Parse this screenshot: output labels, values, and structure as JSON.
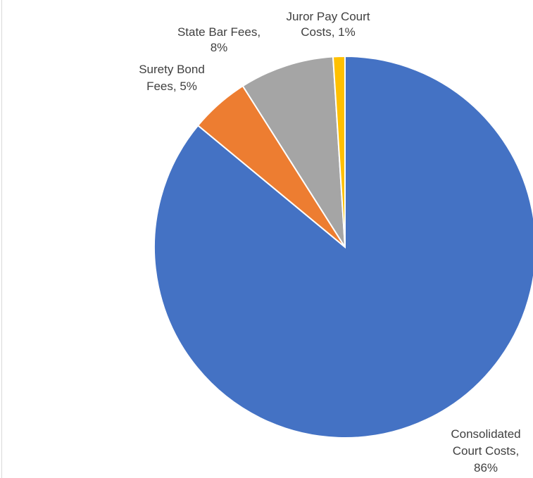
{
  "chart_data": {
    "type": "pie",
    "title": "",
    "slices": [
      {
        "label_lines": [
          "Consolidated",
          "Court Costs,",
          "86%"
        ],
        "category": "Consolidated Court Costs",
        "value": 86,
        "color": "#4472C4"
      },
      {
        "label_lines": [
          "Surety Bond",
          "Fees, 5%"
        ],
        "category": "Surety Bond Fees",
        "value": 5,
        "color": "#ED7D31"
      },
      {
        "label_lines": [
          "State Bar Fees,",
          "8%"
        ],
        "category": "State Bar Fees",
        "value": 8,
        "color": "#A5A5A5"
      },
      {
        "label_lines": [
          "Juror Pay Court",
          "Costs, 1%"
        ],
        "category": "Juror Pay Court Costs",
        "value": 1,
        "color": "#FFC000"
      }
    ]
  }
}
